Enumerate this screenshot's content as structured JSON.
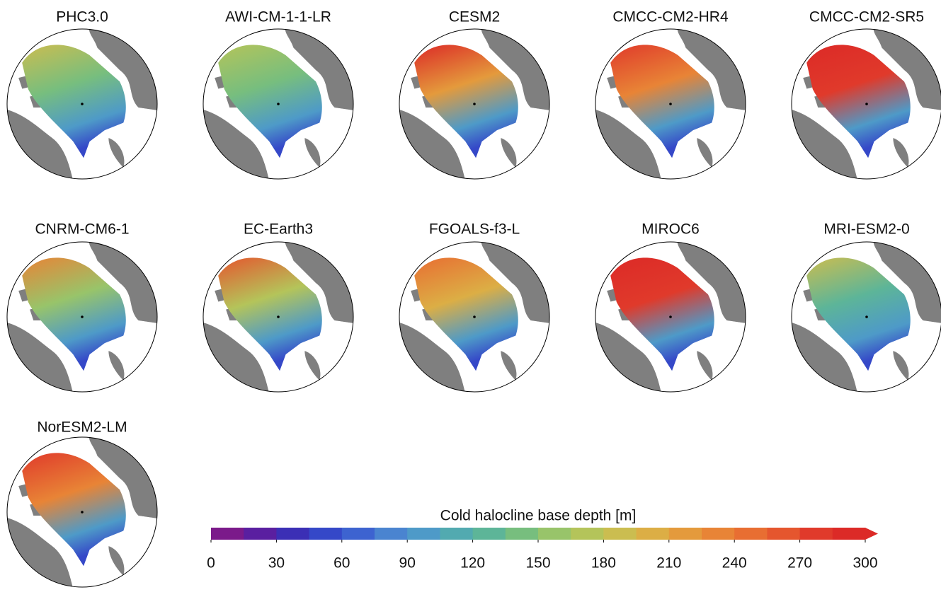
{
  "panels": [
    "PHC3.0",
    "AWI-CM-1-1-LR",
    "CESM2",
    "CMCC-CM2-HR4",
    "CMCC-CM2-SR5",
    "CNRM-CM6-1",
    "EC-Earth3",
    "FGOALS-f3-L",
    "MIROC6",
    "MRI-ESM2-0",
    "NorESM2-LM"
  ],
  "colorbar": {
    "label": "Cold halocline base depth [m]",
    "lim": [
      0,
      300
    ],
    "ticks": [
      0,
      30,
      60,
      90,
      120,
      150,
      180,
      210,
      240,
      270,
      300
    ],
    "colors": [
      "#7b1a8a",
      "#5a1fa0",
      "#3b2fb5",
      "#3548c8",
      "#3d63d0",
      "#4a84d0",
      "#4e9ac8",
      "#52aab0",
      "#5db598",
      "#77be7e",
      "#98c46a",
      "#b4c45a",
      "#cbbd50",
      "#dcae45",
      "#e49a3c",
      "#e88436",
      "#e86e32",
      "#e5562e",
      "#e03a2b",
      "#dc2a27"
    ]
  }
}
